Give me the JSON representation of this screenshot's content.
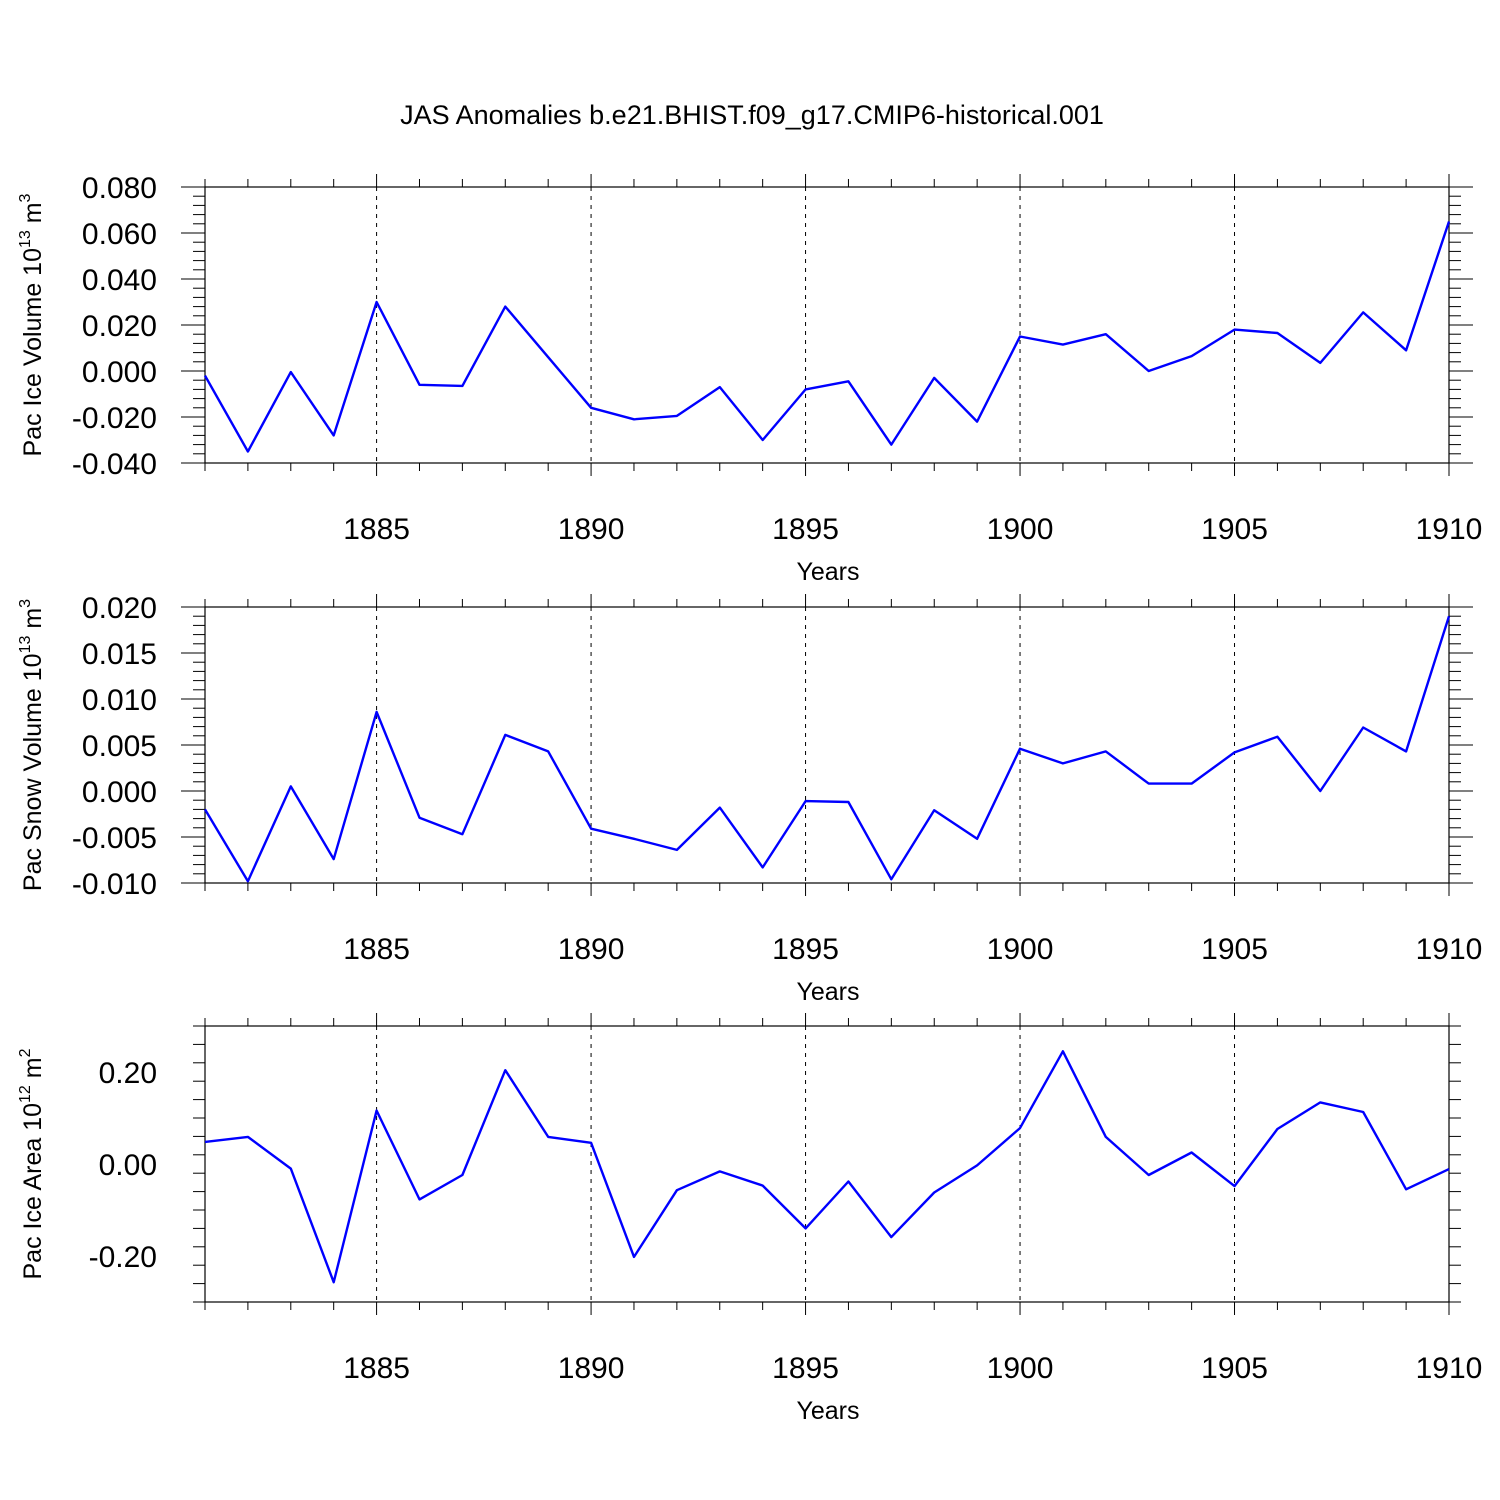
{
  "title": "JAS Anomalies b.e21.BHIST.f09_g17.CMIP6-historical.001",
  "line_color": "#0000ff",
  "chart_data": [
    {
      "type": "line",
      "xlabel": "Years",
      "ylabel": {
        "text": "Pac Ice Volume 10",
        "exp": "13",
        "unit": " m",
        "unit_exp": "3"
      },
      "xlim": [
        1881,
        1910
      ],
      "ylim": [
        -0.04,
        0.08
      ],
      "grid": "vertical dashed at labeled years",
      "x_ticks": [
        1885,
        1890,
        1895,
        1900,
        1905,
        1910
      ],
      "x_tick_labels": [
        "1885",
        "1890",
        "1895",
        "1900",
        "1905",
        "1910"
      ],
      "y_ticks": [
        -0.04,
        -0.02,
        0.0,
        0.02,
        0.04,
        0.06,
        0.08
      ],
      "y_tick_labels": [
        "-0.040",
        "-0.020",
        "0.000",
        "0.020",
        "0.040",
        "0.060",
        "0.080"
      ],
      "x": [
        1881,
        1882,
        1883,
        1884,
        1885,
        1886,
        1887,
        1888,
        1889,
        1890,
        1891,
        1892,
        1893,
        1894,
        1895,
        1896,
        1897,
        1898,
        1899,
        1900,
        1901,
        1902,
        1903,
        1904,
        1905,
        1906,
        1907,
        1908,
        1909,
        1910
      ],
      "values": [
        -0.002,
        -0.035,
        -0.0005,
        -0.028,
        0.03,
        -0.006,
        -0.0065,
        0.028,
        0.006,
        -0.016,
        -0.021,
        -0.0195,
        -0.007,
        -0.03,
        -0.008,
        -0.0045,
        -0.032,
        -0.003,
        -0.022,
        0.015,
        0.0115,
        0.016,
        0.0,
        0.0065,
        0.018,
        0.0165,
        0.0035,
        0.0255,
        0.009,
        0.065
      ]
    },
    {
      "type": "line",
      "xlabel": "Years",
      "ylabel": {
        "text": "Pac Snow Volume 10",
        "exp": "13",
        "unit": " m",
        "unit_exp": "3"
      },
      "xlim": [
        1881,
        1910
      ],
      "ylim": [
        -0.01,
        0.02
      ],
      "grid": "vertical dashed at labeled years",
      "x_ticks": [
        1885,
        1890,
        1895,
        1900,
        1905,
        1910
      ],
      "x_tick_labels": [
        "1885",
        "1890",
        "1895",
        "1900",
        "1905",
        "1910"
      ],
      "y_ticks": [
        -0.01,
        -0.005,
        0.0,
        0.005,
        0.01,
        0.015,
        0.02
      ],
      "y_tick_labels": [
        "-0.010",
        "-0.005",
        "0.000",
        "0.005",
        "0.010",
        "0.015",
        "0.020"
      ],
      "x": [
        1881,
        1882,
        1883,
        1884,
        1885,
        1886,
        1887,
        1888,
        1889,
        1890,
        1891,
        1892,
        1893,
        1894,
        1895,
        1896,
        1897,
        1898,
        1899,
        1900,
        1901,
        1902,
        1903,
        1904,
        1905,
        1906,
        1907,
        1908,
        1909,
        1910
      ],
      "values": [
        -0.002,
        -0.0098,
        0.0005,
        -0.0074,
        0.0086,
        -0.0029,
        -0.0047,
        0.0061,
        0.0043,
        -0.0041,
        -0.0052,
        -0.0064,
        -0.0018,
        -0.0083,
        -0.0011,
        -0.0012,
        -0.0096,
        -0.0021,
        -0.0052,
        0.0046,
        0.003,
        0.0043,
        0.0008,
        0.0008,
        0.0042,
        0.0059,
        0.0,
        0.0069,
        0.0043,
        0.019
      ]
    },
    {
      "type": "line",
      "xlabel": "Years",
      "ylabel": {
        "text": "Pac Ice Area 10",
        "exp": "12",
        "unit": " m",
        "unit_exp": "2"
      },
      "xlim": [
        1881,
        1910
      ],
      "ylim": [
        -0.3,
        0.3
      ],
      "grid": "vertical dashed at labeled years",
      "x_ticks": [
        1885,
        1890,
        1895,
        1900,
        1905,
        1910
      ],
      "x_tick_labels": [
        "1885",
        "1890",
        "1895",
        "1900",
        "1905",
        "1910"
      ],
      "y_ticks": [
        -0.2,
        0.0,
        0.2
      ],
      "y_tick_labels": [
        "-0.20",
        "0.00",
        "0.20"
      ],
      "x": [
        1881,
        1882,
        1883,
        1884,
        1885,
        1886,
        1887,
        1888,
        1889,
        1890,
        1891,
        1892,
        1893,
        1894,
        1895,
        1896,
        1897,
        1898,
        1899,
        1900,
        1901,
        1902,
        1903,
        1904,
        1905,
        1906,
        1907,
        1908,
        1909,
        1910
      ],
      "values": [
        0.048,
        0.059,
        -0.01,
        -0.257,
        0.116,
        -0.077,
        -0.024,
        0.204,
        0.059,
        0.046,
        -0.202,
        -0.057,
        -0.016,
        -0.047,
        -0.14,
        -0.038,
        -0.159,
        -0.062,
        -0.003,
        0.078,
        0.245,
        0.059,
        -0.024,
        0.025,
        -0.048,
        0.076,
        0.134,
        0.113,
        -0.055,
        -0.011
      ]
    }
  ]
}
